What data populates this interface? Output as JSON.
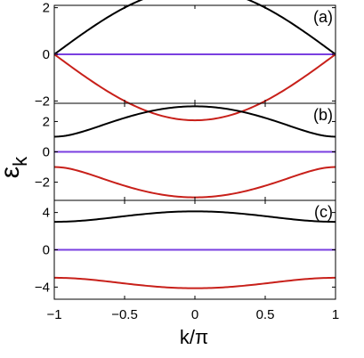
{
  "chart_data": {
    "type": "line",
    "xlabel": "k/π",
    "ylabel": "ε_k",
    "ylabel_main": "ε",
    "ylabel_sub": "k",
    "xlim": [
      -1,
      1
    ],
    "xticks": [
      -1,
      -0.5,
      0,
      0.5,
      1
    ],
    "xtick_labels": [
      "−1",
      "−0.5",
      "0",
      "0.5",
      "1"
    ],
    "series_colors": {
      "upper": "#000000",
      "flat": "#7a3fe0",
      "lower": "#c8201a"
    },
    "panels": [
      {
        "label": "(a)",
        "ylim": [
          -2.1,
          2.1
        ],
        "yticks": [
          -2,
          0,
          2
        ],
        "ytick_labels": [
          "−2",
          "0",
          "2"
        ],
        "gap": 0,
        "series": [
          {
            "values_at": [
              -1,
              -0.5,
              0,
              0.5,
              1
            ],
            "values": [
              0,
              1.41,
              2,
              1.41,
              0
            ],
            "color_key": "upper"
          },
          {
            "values_at": [
              -1,
              0,
              1
            ],
            "values": [
              0,
              0,
              0
            ],
            "color_key": "flat"
          },
          {
            "values_at": [
              -1,
              -0.5,
              0,
              0.5,
              1
            ],
            "values": [
              0,
              -1.41,
              -2,
              -1.41,
              0
            ],
            "color_key": "lower"
          }
        ]
      },
      {
        "label": "(b)",
        "ylim": [
          -3.2,
          3.2
        ],
        "yticks": [
          -2,
          0,
          2
        ],
        "ytick_labels": [
          "−2",
          "0",
          "2"
        ],
        "gap": 1,
        "series": [
          {
            "values_at": [
              -1,
              0,
              1
            ],
            "values": [
              1,
              2.83,
              1
            ],
            "color_key": "upper"
          },
          {
            "values_at": [
              -1,
              0,
              1
            ],
            "values": [
              0,
              0,
              0
            ],
            "color_key": "flat"
          },
          {
            "values_at": [
              -1,
              0,
              1
            ],
            "values": [
              -1,
              -2.83,
              -1
            ],
            "color_key": "lower"
          }
        ]
      },
      {
        "label": "(c)",
        "ylim": [
          -5.3,
          5.3
        ],
        "yticks": [
          -4,
          0,
          4
        ],
        "ytick_labels": [
          "−4",
          "0",
          "4"
        ],
        "gap": 3,
        "series": [
          {
            "values_at": [
              -1,
              0,
              1
            ],
            "values": [
              3,
              4.83,
              3
            ],
            "color_key": "upper"
          },
          {
            "values_at": [
              -1,
              0,
              1
            ],
            "values": [
              0,
              0,
              0
            ],
            "color_key": "flat"
          },
          {
            "values_at": [
              -1,
              0,
              1
            ],
            "values": [
              -3,
              -4.83,
              -3
            ],
            "color_key": "lower"
          }
        ]
      }
    ]
  }
}
